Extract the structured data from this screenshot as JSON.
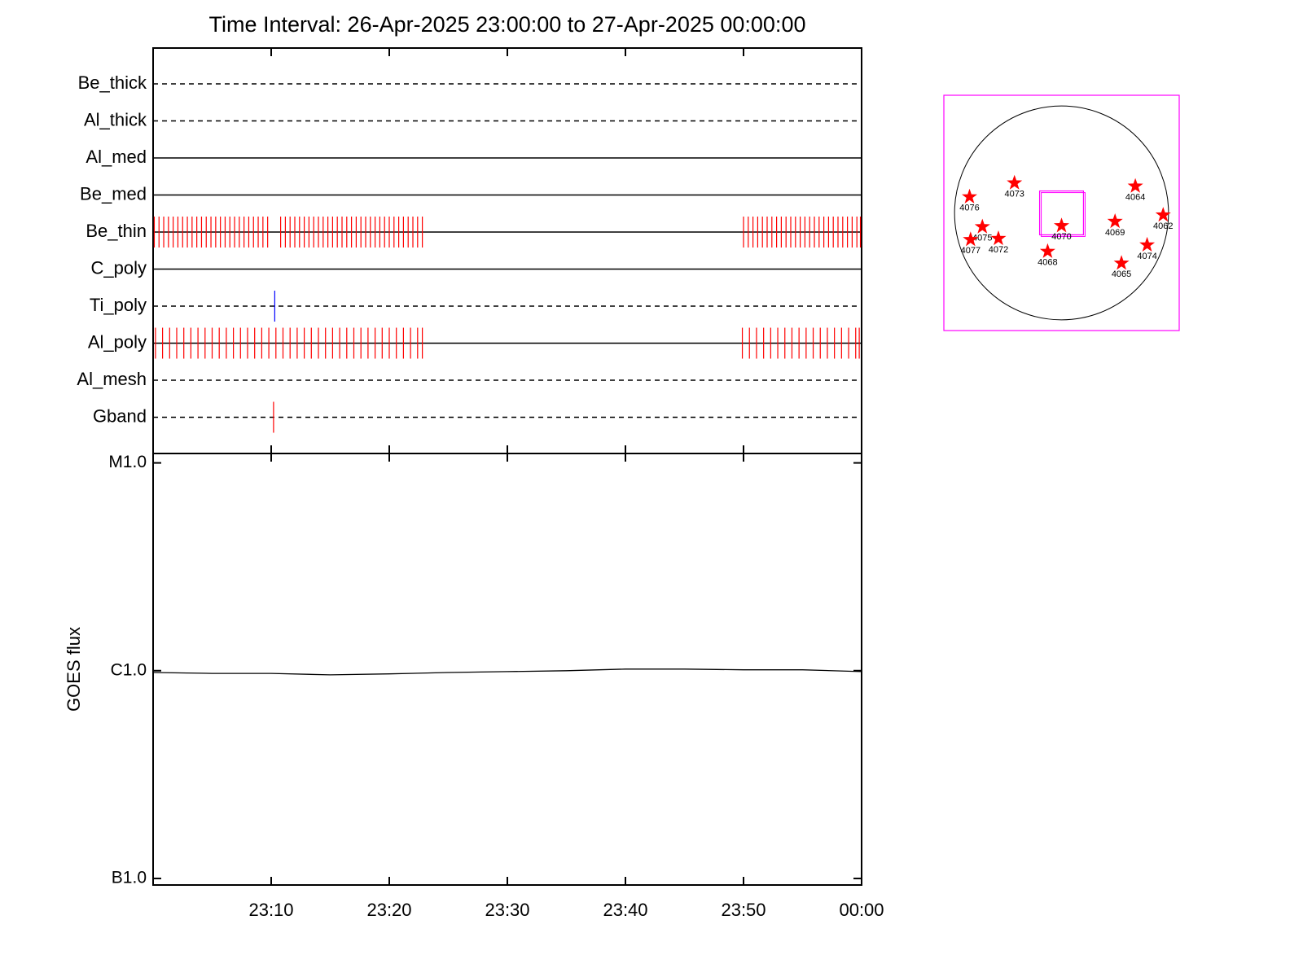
{
  "chart_data": [
    {
      "type": "event",
      "title": "Time Interval: 26-Apr-2025 23:00:00 to 27-Apr-2025 00:00:00",
      "categories": [
        "Be_thick",
        "Al_thick",
        "Al_med",
        "Be_med",
        "Be_thin",
        "C_poly",
        "Ti_poly",
        "Al_poly",
        "Al_mesh",
        "Gband"
      ],
      "line_styles": [
        "dashed",
        "dashed",
        "solid",
        "solid",
        "solid",
        "solid",
        "dashed",
        "solid",
        "dashed",
        "dashed"
      ],
      "colors": [
        null,
        null,
        null,
        null,
        "#ff0000",
        null,
        "#0000ff",
        "#ff0000",
        null,
        "#ff0000"
      ],
      "exposures": [
        [],
        [],
        [],
        [],
        [
          0.1,
          0.5,
          0.9,
          1.3,
          1.7,
          2.1,
          2.5,
          2.9,
          3.3,
          3.7,
          4.1,
          4.5,
          4.9,
          5.3,
          5.7,
          6.1,
          6.5,
          6.9,
          7.3,
          7.7,
          8.1,
          8.5,
          8.9,
          9.3,
          9.7,
          10.8,
          11.2,
          11.6,
          12,
          12.4,
          12.8,
          13.2,
          13.6,
          14,
          14.4,
          14.8,
          15.2,
          15.6,
          16,
          16.4,
          16.8,
          17.2,
          17.6,
          18,
          18.4,
          18.8,
          19.2,
          19.6,
          20,
          20.4,
          20.8,
          21.2,
          21.6,
          22,
          22.4,
          22.8,
          50,
          50.4,
          50.8,
          51.2,
          51.6,
          52,
          52.4,
          52.8,
          53.2,
          53.6,
          54,
          54.4,
          54.8,
          55.2,
          55.6,
          56,
          56.4,
          56.8,
          57.2,
          57.6,
          58,
          58.4,
          58.8,
          59.2,
          59.6,
          59.9
        ],
        [],
        [
          10.3
        ],
        [
          0.2,
          0.8,
          1.4,
          2,
          2.6,
          3.2,
          3.8,
          4.4,
          5,
          5.6,
          6.2,
          6.8,
          7.4,
          8,
          8.6,
          9.2,
          9.8,
          10.4,
          11,
          11.6,
          12.2,
          12.8,
          13.4,
          14,
          14.6,
          15.2,
          15.8,
          16.4,
          17,
          17.6,
          18.2,
          18.8,
          19.4,
          20,
          20.6,
          21.2,
          21.8,
          22.4,
          22.8,
          49.9,
          50.5,
          51.1,
          51.7,
          52.3,
          52.9,
          53.5,
          54.1,
          54.7,
          55.3,
          55.9,
          56.5,
          57.1,
          57.7,
          58.3,
          58.9,
          59.5,
          59.8
        ],
        [],
        [
          10.2
        ]
      ],
      "xlim": [
        0,
        60
      ],
      "xticks": [
        0,
        10,
        20,
        30,
        40,
        50,
        60
      ]
    },
    {
      "type": "line",
      "ylabel": "GOES flux",
      "log_y": true,
      "color": "#000000",
      "x": [
        0,
        5,
        10,
        15,
        20,
        25,
        30,
        35,
        40,
        45,
        50,
        55,
        60
      ],
      "values": [
        9.8e-07,
        9.7e-07,
        9.7e-07,
        9.55e-07,
        9.65e-07,
        9.8e-07,
        9.9e-07,
        1e-06,
        1.018e-06,
        1.018e-06,
        1.01e-06,
        1.01e-06,
        9.9e-07
      ],
      "xlim": [
        0,
        60
      ],
      "xticks": [
        {
          "value": 10,
          "label": "23:10"
        },
        {
          "value": 20,
          "label": "23:20"
        },
        {
          "value": 30,
          "label": "23:30"
        },
        {
          "value": 40,
          "label": "23:40"
        },
        {
          "value": 50,
          "label": "23:50"
        },
        {
          "value": 60,
          "label": "00:00"
        }
      ],
      "ylim": [
        9.3e-08,
        1.11e-05
      ],
      "yticks": [
        {
          "value": 1e-07,
          "label": "B1.0"
        },
        {
          "value": 1e-06,
          "label": "C1.0"
        },
        {
          "value": 1e-05,
          "label": "M1.0"
        }
      ]
    },
    {
      "type": "map",
      "marker_color": "#ff0000",
      "fov_color": "#ff00ff",
      "xlim": [
        -1.1,
        1.1
      ],
      "ylim": [
        -1.1,
        1.1
      ],
      "fov": {
        "x": 0,
        "y": 0,
        "width": 0.41,
        "height": 0.41
      },
      "points": [
        {
          "label": "4076",
          "x": -0.86,
          "y": 0.15
        },
        {
          "label": "4073",
          "x": -0.44,
          "y": 0.28
        },
        {
          "label": "4064",
          "x": 0.69,
          "y": 0.25
        },
        {
          "label": "4062",
          "x": 0.95,
          "y": -0.02
        },
        {
          "label": "4075",
          "x": -0.74,
          "y": -0.13
        },
        {
          "label": "4070",
          "x": 0.0,
          "y": -0.12
        },
        {
          "label": "4069",
          "x": 0.5,
          "y": -0.08
        },
        {
          "label": "4077",
          "x": -0.85,
          "y": -0.25
        },
        {
          "label": "4072",
          "x": -0.59,
          "y": -0.24
        },
        {
          "label": "4068",
          "x": -0.13,
          "y": -0.36
        },
        {
          "label": "4074",
          "x": 0.8,
          "y": -0.3
        },
        {
          "label": "4065",
          "x": 0.56,
          "y": -0.47
        }
      ]
    }
  ]
}
